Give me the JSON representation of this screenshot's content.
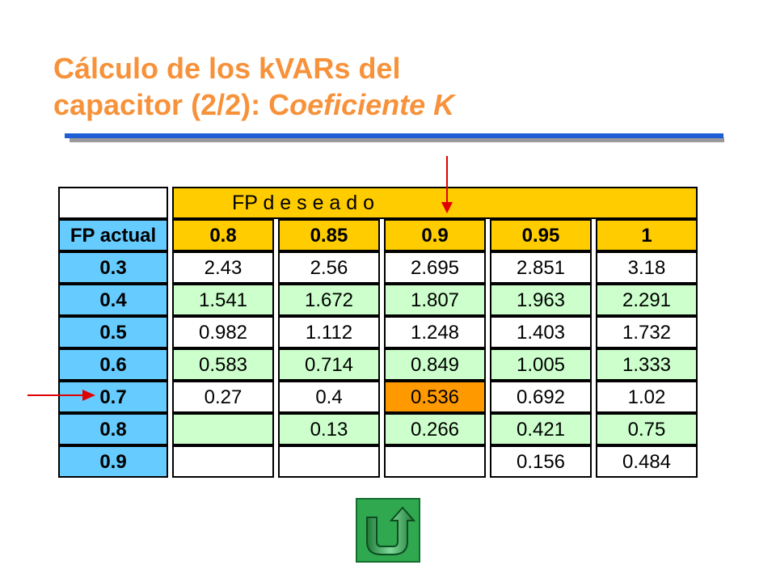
{
  "title": {
    "line1": "Cálculo de los kVARs del",
    "line2_prefix": "capacitor (2/2): C",
    "line2_italic": "oeficiente K"
  },
  "table": {
    "group_header": "FP  d e s e a d o",
    "row_header_label": "FP actual",
    "columns": [
      "0.8",
      "0.85",
      "0.9",
      "0.95",
      "1"
    ],
    "rows": [
      {
        "fp": "0.3",
        "values": [
          "2.43",
          "2.56",
          "2.695",
          "2.851",
          "3.18"
        ]
      },
      {
        "fp": "0.4",
        "values": [
          "1.541",
          "1.672",
          "1.807",
          "1.963",
          "2.291"
        ]
      },
      {
        "fp": "0.5",
        "values": [
          "0.982",
          "1.112",
          "1.248",
          "1.403",
          "1.732"
        ]
      },
      {
        "fp": "0.6",
        "values": [
          "0.583",
          "0.714",
          "0.849",
          "1.005",
          "1.333"
        ]
      },
      {
        "fp": "0.7",
        "values": [
          "0.27",
          "0.4",
          "0.536",
          "0.692",
          "1.02"
        ]
      },
      {
        "fp": "0.8",
        "values": [
          "",
          "0.13",
          "0.266",
          "0.421",
          "0.75"
        ]
      },
      {
        "fp": "0.9",
        "values": [
          "",
          "",
          "",
          "0.156",
          "0.484"
        ]
      }
    ],
    "highlight": {
      "row_fp": "0.7",
      "column": "0.9",
      "value": "0.536"
    }
  },
  "colors": {
    "title": "#f7923a",
    "rule": "#1f5fd6",
    "header_fill": "#ffcc00",
    "row_header_fill": "#66ccff",
    "alt_row_fill": "#ccffcc",
    "highlight_fill": "#ff9900",
    "arrow": "#e00000",
    "return_button": "#2fa84f"
  },
  "icons": {
    "return_button": "u-turn-return-icon"
  }
}
